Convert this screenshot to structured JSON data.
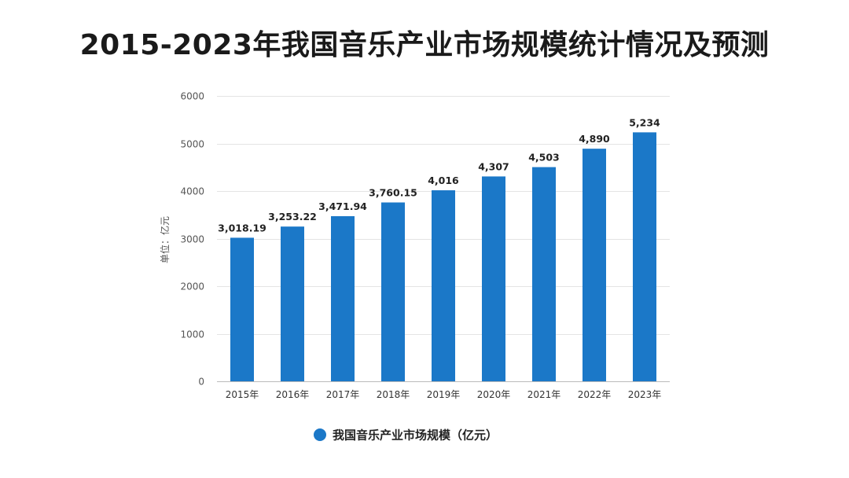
{
  "chart_data": {
    "type": "bar",
    "title": "2015-2023年我国音乐产业市场规模统计情况及预测",
    "ylabel": "单位：亿元",
    "xlabel": "",
    "ylim": [
      0,
      6000
    ],
    "yticks": [
      "0",
      "1000",
      "2000",
      "3000",
      "4000",
      "5000",
      "6000"
    ],
    "categories": [
      "2015年",
      "2016年",
      "2017年",
      "2018年",
      "2019年",
      "2020年",
      "2021年",
      "2022年",
      "2023年"
    ],
    "series": [
      {
        "name": "我国音乐产业市场规模（亿元）",
        "values": [
          3018.19,
          3253.22,
          3471.94,
          3760.15,
          4016,
          4307,
          4503,
          4890,
          5234
        ],
        "labels": [
          "3,018.19",
          "3,253.22",
          "3,471.94",
          "3,760.15",
          "4,016",
          "4,307",
          "4,503",
          "4,890",
          "5,234"
        ]
      }
    ],
    "bar_color": "#1b78c8",
    "grid": true,
    "legend_position": "bottom"
  }
}
